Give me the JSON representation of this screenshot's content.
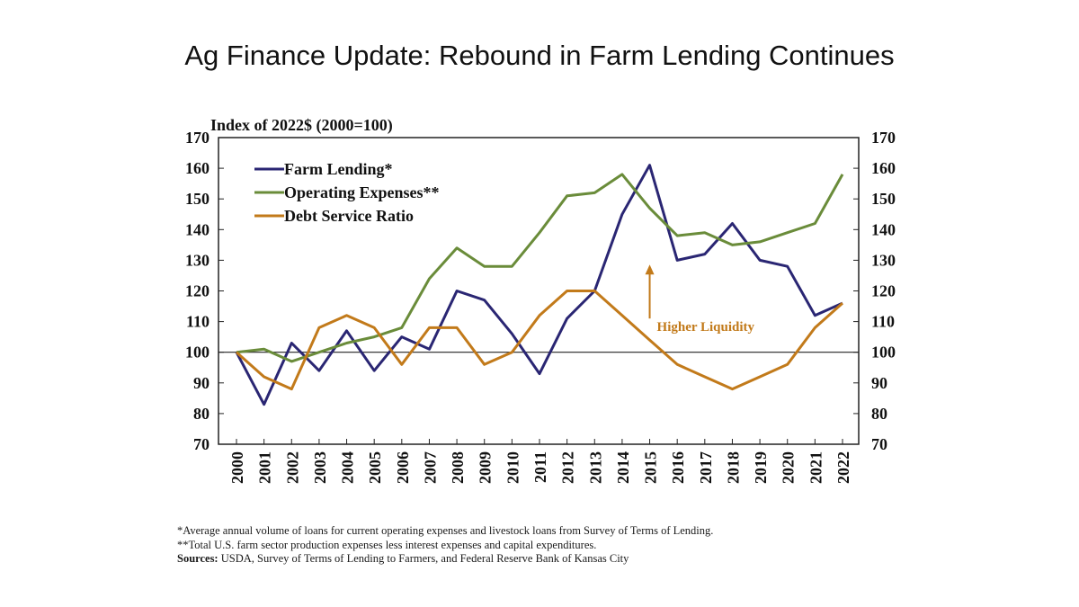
{
  "page": {
    "headline": "Ag Finance Update: Rebound in Farm Lending Continues"
  },
  "chart_data": {
    "type": "line",
    "title": "Index of 2022$ (2000=100)",
    "x": [
      "2000",
      "2001",
      "2002",
      "2003",
      "2004",
      "2005",
      "2006",
      "2007",
      "2008",
      "2009",
      "2010",
      "2011",
      "2012",
      "2013",
      "2014",
      "2015",
      "2016",
      "2017",
      "2018",
      "2019",
      "2020",
      "2021",
      "2022"
    ],
    "ylim": [
      70,
      170
    ],
    "yticks": [
      70,
      80,
      90,
      100,
      110,
      120,
      130,
      140,
      150,
      160,
      170
    ],
    "secondary_axis_same_scale": true,
    "reference_line": 100,
    "grid": false,
    "legend_position": "top-left",
    "series": [
      {
        "name": "Farm Lending*",
        "color": "#2a2673",
        "values": [
          100,
          83,
          103,
          94,
          107,
          94,
          105,
          101,
          120,
          117,
          106,
          93,
          111,
          120,
          145,
          161,
          130,
          132,
          142,
          130,
          128,
          112,
          116
        ]
      },
      {
        "name": "Operating Expenses**",
        "color": "#6a8c3a",
        "values": [
          100,
          101,
          97,
          100,
          103,
          105,
          108,
          124,
          134,
          128,
          128,
          139,
          151,
          152,
          158,
          147,
          138,
          139,
          135,
          136,
          139,
          142,
          158
        ]
      },
      {
        "name": "Debt Service Ratio",
        "color": "#c27a1a",
        "values": [
          100,
          92,
          88,
          108,
          112,
          108,
          96,
          108,
          108,
          96,
          100,
          112,
          120,
          120,
          112,
          104,
          96,
          92,
          88,
          92,
          96,
          108,
          116
        ]
      }
    ],
    "annotations": [
      {
        "text": "Higher Liquidity",
        "arrow": "up",
        "x": "2015",
        "y_from": 111,
        "y_to": 128,
        "color": "#c27a1a"
      }
    ]
  },
  "footnotes": {
    "note1": "*Average annual volume of loans for current operating expenses and livestock loans from Survey of Terms of Lending.",
    "note2": "**Total U.S. farm sector production expenses less interest expenses and capital expenditures.",
    "sources_label": "Sources:",
    "sources_text": " USDA, Survey of Terms of Lending to Farmers, and Federal Reserve Bank of Kansas City"
  }
}
